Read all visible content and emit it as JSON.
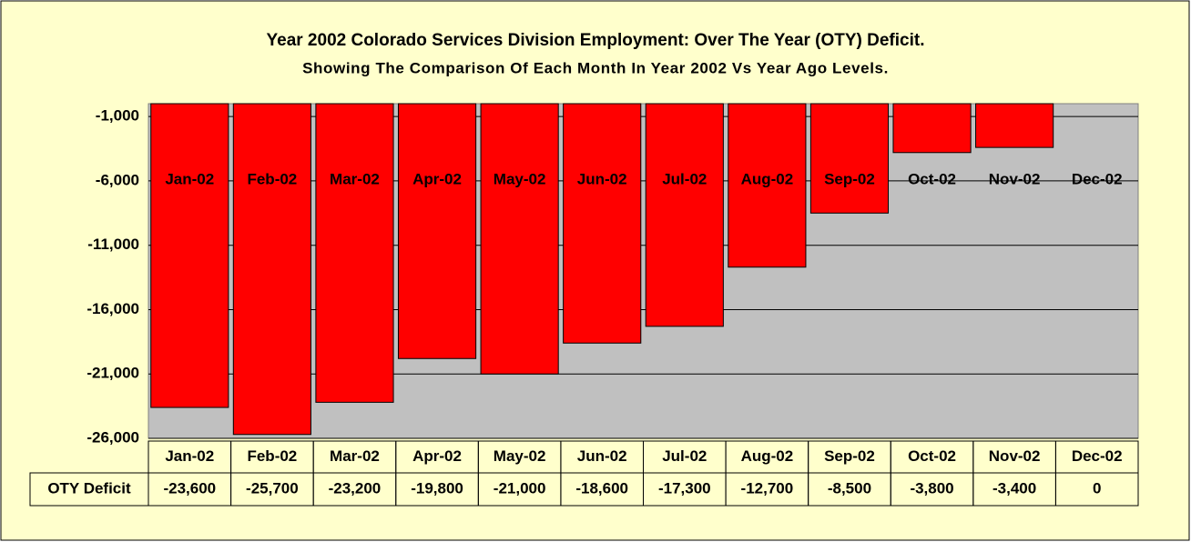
{
  "chart_data": {
    "type": "bar",
    "title": "Year 2002 Colorado Services Division Employment: Over The Year (OTY) Deficit.",
    "subtitle": "Showing The Comparison Of Each Month In Year 2002 Vs Year Ago Levels.",
    "categories": [
      "Jan-02",
      "Feb-02",
      "Mar-02",
      "Apr-02",
      "May-02",
      "Jun-02",
      "Jul-02",
      "Aug-02",
      "Sep-02",
      "Oct-02",
      "Nov-02",
      "Dec-02"
    ],
    "series": [
      {
        "name": "OTY Deficit",
        "color": "#ff0000",
        "values": [
          -23600,
          -25700,
          -23200,
          -19800,
          -21000,
          -18600,
          -17300,
          -12700,
          -8500,
          -3800,
          -3400,
          0
        ],
        "value_labels": [
          "-23,600",
          "-25,700",
          "-23,200",
          "-19,800",
          "-21,000",
          "-18,600",
          "-17,300",
          "-12,700",
          "-8,500",
          "-3,800",
          "-3,400",
          "0"
        ]
      }
    ],
    "ylim": [
      -26000,
      0
    ],
    "yticks": [
      {
        "value": -1000,
        "label": "-1,000"
      },
      {
        "value": -6000,
        "label": "-6,000"
      },
      {
        "value": -11000,
        "label": "-11,000"
      },
      {
        "value": -16000,
        "label": "-16,000"
      },
      {
        "value": -21000,
        "label": "-21,000"
      },
      {
        "value": -26000,
        "label": "-26,000"
      }
    ],
    "grid": true
  }
}
